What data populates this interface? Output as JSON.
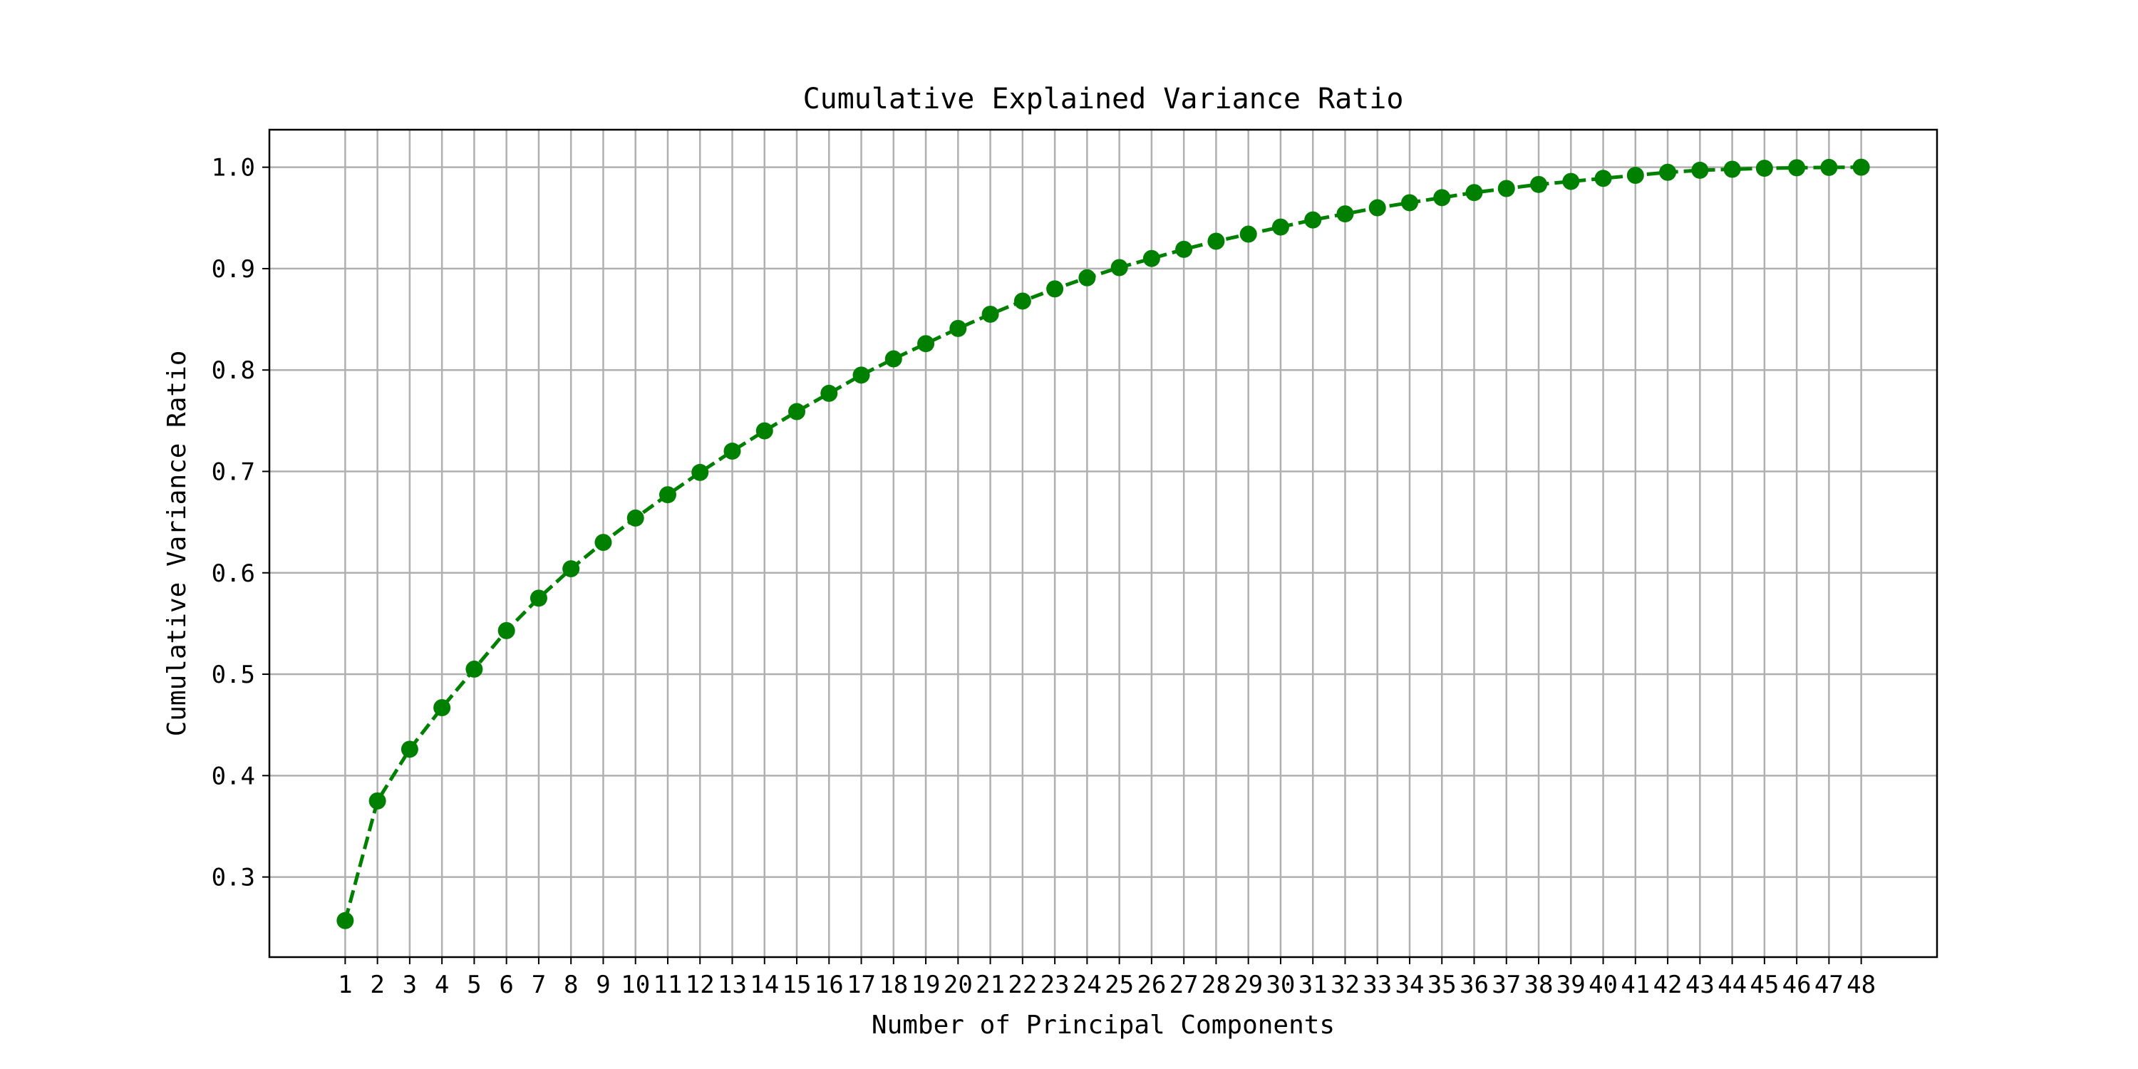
{
  "chart_data": {
    "type": "line",
    "title": "Cumulative Explained Variance Ratio",
    "xlabel": "Number of Principal Components",
    "ylabel": "Cumulative Variance Ratio",
    "x": [
      1,
      2,
      3,
      4,
      5,
      6,
      7,
      8,
      9,
      10,
      11,
      12,
      13,
      14,
      15,
      16,
      17,
      18,
      19,
      20,
      21,
      22,
      23,
      24,
      25,
      26,
      27,
      28,
      29,
      30,
      31,
      32,
      33,
      34,
      35,
      36,
      37,
      38,
      39,
      40,
      41,
      42,
      43,
      44,
      45,
      46,
      47,
      48
    ],
    "series": [
      {
        "values": [
          0.257,
          0.375,
          0.426,
          0.467,
          0.505,
          0.543,
          0.575,
          0.604,
          0.63,
          0.654,
          0.677,
          0.699,
          0.72,
          0.74,
          0.759,
          0.777,
          0.795,
          0.811,
          0.826,
          0.841,
          0.855,
          0.868,
          0.88,
          0.891,
          0.901,
          0.91,
          0.919,
          0.927,
          0.934,
          0.941,
          0.948,
          0.954,
          0.96,
          0.965,
          0.97,
          0.975,
          0.979,
          0.983,
          0.986,
          0.989,
          0.992,
          0.995,
          0.997,
          0.998,
          0.999,
          0.9995,
          0.9998,
          1.0
        ],
        "color": "#008000",
        "line_style": "dashed",
        "marker": "circle"
      }
    ],
    "xlim": [
      -1.35,
      50.35
    ],
    "ylim": [
      0.221,
      1.037
    ],
    "yticks": [
      0.3,
      0.4,
      0.5,
      0.6,
      0.7,
      0.8,
      0.9,
      1.0
    ],
    "ytick_labels": [
      "0.3",
      "0.4",
      "0.5",
      "0.6",
      "0.7",
      "0.8",
      "0.9",
      "1.0"
    ],
    "grid": true
  }
}
